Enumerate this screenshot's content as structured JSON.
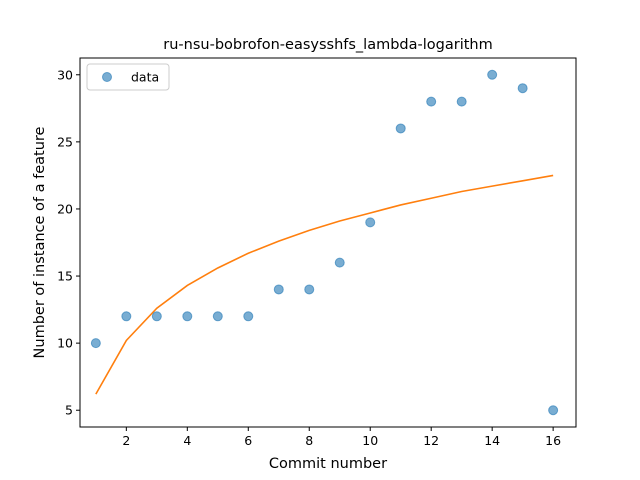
{
  "chart_data": {
    "type": "scatter",
    "title": "ru-nsu-bobrofon-easysshfs_lambda-logarithm",
    "xlabel": "Commit number",
    "ylabel": "Number of instance of a feature",
    "xlim": [
      0.48,
      16.75
    ],
    "ylim": [
      3.75,
      31.25
    ],
    "xticks": [
      2,
      4,
      6,
      8,
      10,
      12,
      14,
      16
    ],
    "yticks": [
      5,
      10,
      15,
      20,
      25,
      30
    ],
    "grid": false,
    "legend_position": "top-left",
    "series": [
      {
        "name": "data",
        "kind": "scatter",
        "color": "#1f77b4",
        "x": [
          1,
          2,
          3,
          4,
          5,
          6,
          7,
          8,
          9,
          10,
          11,
          12,
          13,
          14,
          15,
          16
        ],
        "y": [
          10,
          12,
          12,
          12,
          12,
          12,
          14,
          14,
          16,
          19,
          26,
          28,
          28,
          30,
          29,
          5
        ]
      },
      {
        "kind": "line",
        "color": "#ff7f0e",
        "x": [
          1,
          2,
          3,
          4,
          5,
          6,
          7,
          8,
          9,
          10,
          11,
          12,
          13,
          14,
          15,
          16
        ],
        "y": [
          6.2,
          10.2,
          12.6,
          14.3,
          15.6,
          16.7,
          17.6,
          18.4,
          19.1,
          19.7,
          20.3,
          20.8,
          21.3,
          21.7,
          22.1,
          22.5
        ]
      }
    ]
  }
}
